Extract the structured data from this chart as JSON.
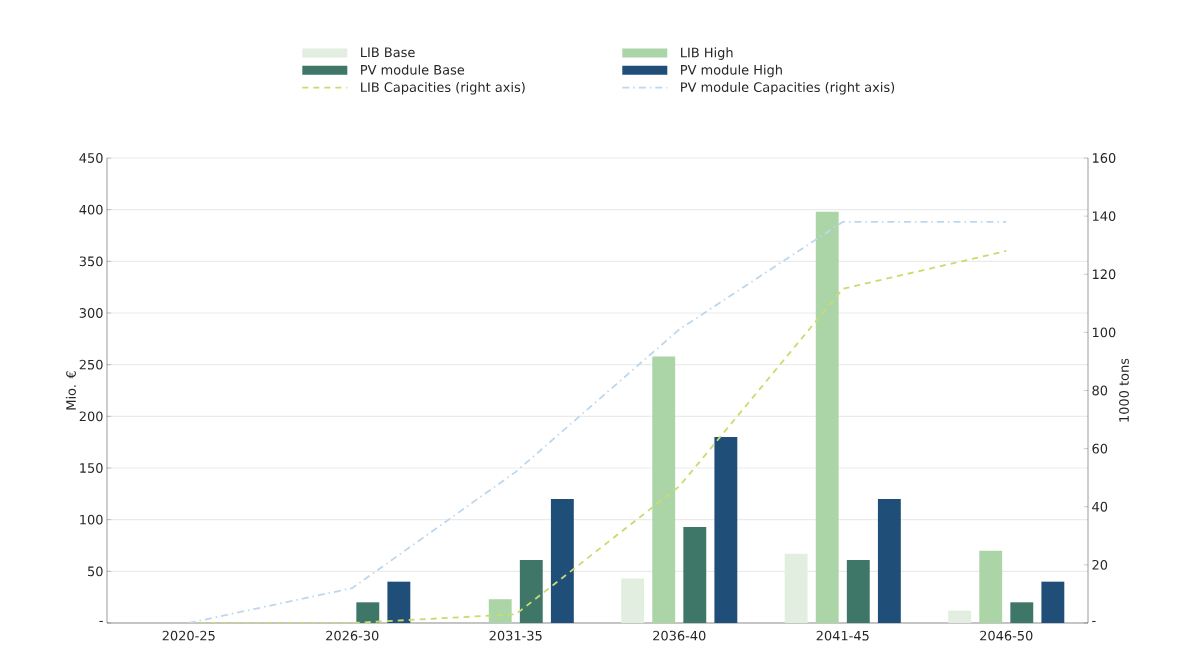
{
  "chart_data": {
    "type": "bar",
    "ylabel": "Mio. €",
    "y2label": "1000 tons",
    "categories": [
      "2020-25",
      "2026-30",
      "2031-35",
      "2036-40",
      "2041-45",
      "2046-50"
    ],
    "series": [
      {
        "name": "LIB Base",
        "color": "#e2efe0",
        "values": [
          0,
          0,
          null,
          43,
          67,
          12
        ]
      },
      {
        "name": "LIB High",
        "color": "#acd5a7",
        "values": [
          0,
          0,
          23,
          258,
          398,
          70
        ]
      },
      {
        "name": "PV module Base",
        "color": "#3e7668",
        "values": [
          0,
          20,
          61,
          93,
          61,
          20
        ]
      },
      {
        "name": "PV module High",
        "color": "#1f4e79",
        "values": [
          0,
          40,
          120,
          180,
          120,
          40
        ]
      },
      {
        "name": "LIB Capacities (right axis)",
        "type": "line",
        "axis": "y2",
        "line_style": "dashed",
        "color": "#c8dc6e",
        "values": [
          0,
          0,
          3,
          47,
          115,
          128
        ]
      },
      {
        "name": "PV module Capacities (right axis)",
        "type": "line",
        "axis": "y2",
        "line_style": "dashdot",
        "color": "#bdd7ee",
        "values": [
          0,
          12,
          52,
          101,
          138,
          138
        ]
      }
    ],
    "ylim": [
      0,
      450
    ],
    "yticks": [
      {
        "value": 0,
        "label": "-"
      },
      50,
      100,
      150,
      200,
      250,
      300,
      350,
      400,
      450
    ],
    "y2lim": [
      0,
      160
    ],
    "y2ticks": [
      {
        "value": 0,
        "label": "-"
      },
      20,
      40,
      60,
      80,
      100,
      120,
      140,
      160
    ],
    "grid": "y",
    "legend": "top",
    "marker": "none"
  }
}
